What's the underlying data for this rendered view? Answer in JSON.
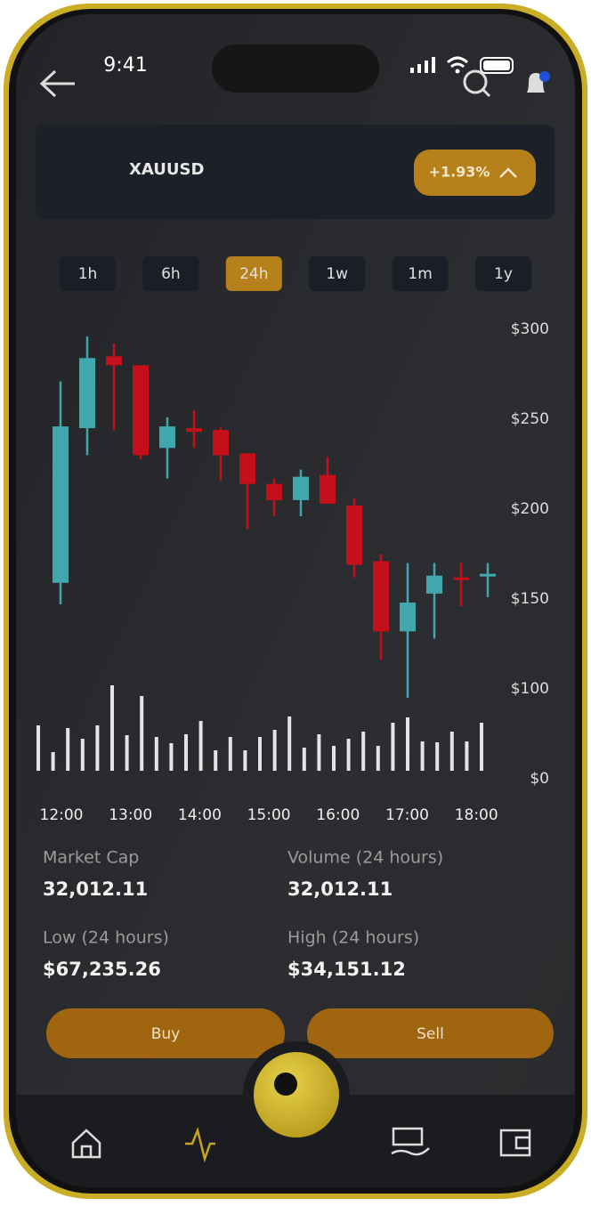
{
  "status": {
    "time": "9:41"
  },
  "header": {
    "symbol": "XAUUSD",
    "change": "+1.93%"
  },
  "ranges": {
    "options": [
      "1h",
      "6h",
      "24h",
      "1w",
      "1m",
      "1y"
    ],
    "selected": 2
  },
  "chart_data": {
    "type": "candlestick",
    "open": [
      159,
      245,
      285,
      280,
      234,
      245,
      244,
      231,
      214,
      205,
      219,
      202,
      171,
      132,
      153,
      162,
      163
    ],
    "high": [
      271,
      296,
      292,
      280,
      251,
      255,
      245.5,
      231,
      217,
      222,
      229,
      206,
      175,
      170,
      170,
      170,
      170
    ],
    "low": [
      147,
      230,
      244,
      228,
      217,
      234,
      216,
      189,
      196,
      196,
      203,
      162,
      116,
      95,
      128,
      146,
      151
    ],
    "close": [
      246,
      284,
      280,
      230,
      246,
      243,
      230,
      214,
      205,
      218,
      203,
      169,
      132,
      148,
      163,
      161,
      164
    ],
    "up_color": "#3fa7ad",
    "down_color": "#c4101b",
    "ylim": [
      50,
      300
    ],
    "yticks": [
      {
        "value": 300,
        "label": "$300"
      },
      {
        "value": 250,
        "label": "$250"
      },
      {
        "value": 200,
        "label": "$200"
      },
      {
        "value": 150,
        "label": "$150"
      },
      {
        "value": 100,
        "label": "$100"
      }
    ],
    "volume": {
      "axis": "y2",
      "color": "#e4e4e4",
      "values": [
        51,
        21,
        48,
        36,
        51,
        96,
        40,
        84,
        38,
        31,
        41,
        56,
        23,
        38,
        23,
        38,
        46,
        61,
        26,
        41,
        28,
        36,
        44,
        28,
        54,
        60,
        33,
        32,
        44,
        33,
        54
      ]
    },
    "y2lim": [
      0,
      100
    ],
    "y2ticks": [
      {
        "value": 0,
        "label": "$0"
      }
    ],
    "xticks": [
      "12:00",
      "13:00",
      "14:00",
      "15:00",
      "16:00",
      "17:00",
      "18:00"
    ]
  },
  "stats": [
    {
      "label": "Market Cap",
      "value": "32,012.11"
    },
    {
      "label": "Volume (24 hours)",
      "value": "32,012.11"
    },
    {
      "label": "Low (24 hours)",
      "value": "$67,235.26"
    },
    {
      "label": "High (24 hours)",
      "value": "$34,151.12"
    }
  ],
  "actions": [
    "Buy",
    "Sell"
  ]
}
